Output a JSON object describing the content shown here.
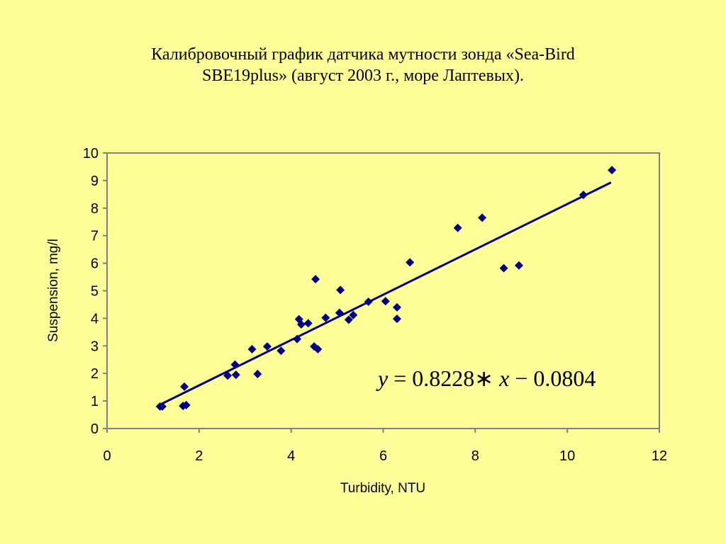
{
  "title": {
    "line1": "Калибровочный график датчика мутности зонда «Sea-Bird",
    "line2": "SBE19plus» (август 2003 г., море Лаптевых)."
  },
  "equation": {
    "y": "y",
    "eq": " = 0.8228",
    "star": "∗",
    "x": " x",
    "rest": " − 0.0804"
  },
  "chart_data": {
    "type": "scatter",
    "xlabel": "Turbidity, NTU",
    "ylabel": "Suspension, mg/l",
    "xlim": [
      0,
      12
    ],
    "ylim": [
      0,
      10
    ],
    "x_ticks": [
      "0",
      "2",
      "4",
      "6",
      "8",
      "10",
      "12"
    ],
    "y_ticks": [
      "0",
      "1",
      "2",
      "3",
      "4",
      "5",
      "6",
      "7",
      "8",
      "9",
      "10"
    ],
    "grid": false,
    "legend": "none",
    "colors": {
      "plot_area": "#FFFF99",
      "frame": "#808080",
      "points": "#000080",
      "trendline": "#000080"
    },
    "trendline": {
      "slope": 0.8228,
      "intercept": -0.0804,
      "x_range": [
        1.15,
        10.95
      ]
    },
    "points": [
      [
        1.15,
        0.8
      ],
      [
        1.2,
        0.8
      ],
      [
        1.65,
        0.82
      ],
      [
        1.72,
        0.85
      ],
      [
        1.68,
        1.52
      ],
      [
        2.62,
        1.92
      ],
      [
        2.8,
        1.95
      ],
      [
        2.78,
        2.32
      ],
      [
        3.15,
        2.88
      ],
      [
        3.27,
        1.98
      ],
      [
        3.48,
        2.98
      ],
      [
        3.78,
        2.82
      ],
      [
        4.13,
        3.25
      ],
      [
        4.17,
        3.97
      ],
      [
        4.22,
        3.78
      ],
      [
        4.37,
        3.82
      ],
      [
        4.5,
        2.98
      ],
      [
        4.58,
        2.88
      ],
      [
        4.53,
        5.42
      ],
      [
        4.75,
        4.02
      ],
      [
        5.05,
        4.2
      ],
      [
        5.07,
        5.03
      ],
      [
        5.25,
        3.95
      ],
      [
        5.35,
        4.12
      ],
      [
        5.68,
        4.6
      ],
      [
        6.05,
        4.62
      ],
      [
        6.3,
        4.4
      ],
      [
        6.3,
        3.98
      ],
      [
        6.58,
        6.03
      ],
      [
        7.62,
        7.28
      ],
      [
        8.15,
        7.65
      ],
      [
        8.62,
        5.82
      ],
      [
        8.95,
        5.92
      ],
      [
        10.35,
        8.48
      ],
      [
        10.97,
        9.38
      ]
    ]
  }
}
